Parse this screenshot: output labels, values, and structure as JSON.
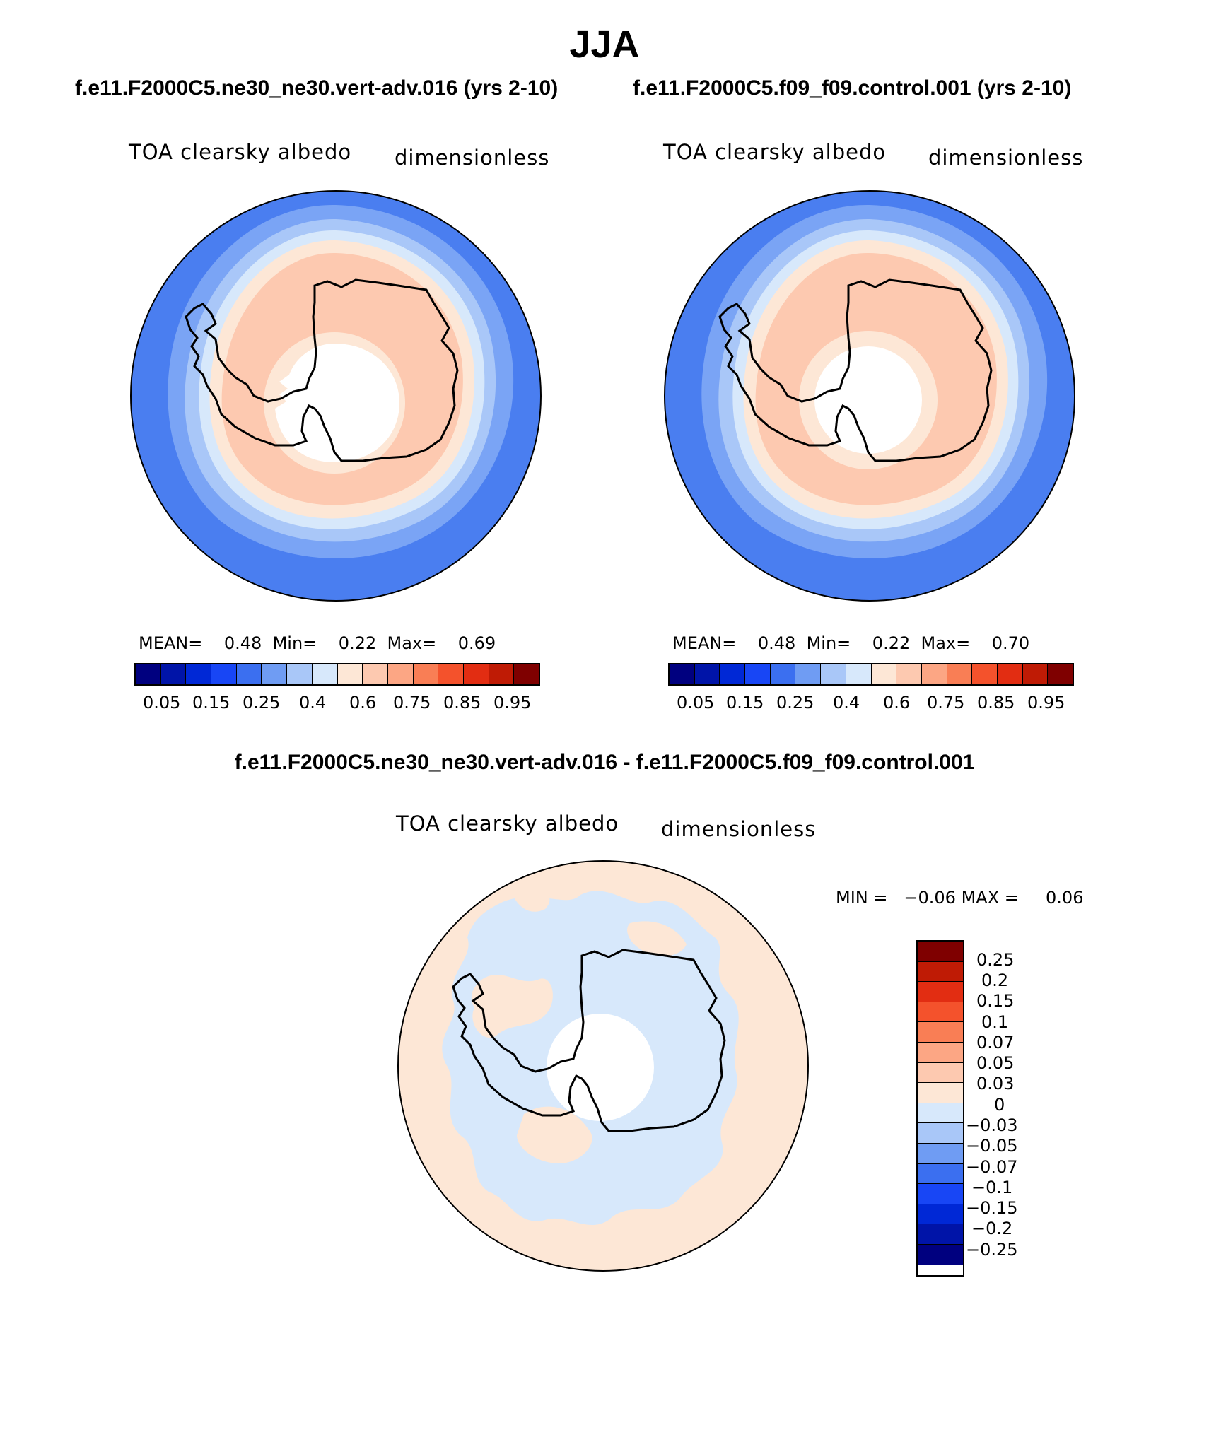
{
  "page": {
    "title": "JJA"
  },
  "panels": [
    {
      "case": "f.e11.F2000C5.ne30_ne30.vert-adv.016 (yrs 2-10)",
      "variable": "TOA clearsky albedo",
      "units": "dimensionless",
      "stats": {
        "mean_label": "MEAN=",
        "mean": "0.48",
        "min_label": "Min=",
        "min": "0.22",
        "max_label": "Max=",
        "max": "0.69"
      }
    },
    {
      "case": "f.e11.F2000C5.f09_f09.control.001 (yrs 2-10)",
      "variable": "TOA clearsky albedo",
      "units": "dimensionless",
      "stats": {
        "mean_label": "MEAN=",
        "mean": "0.48",
        "min_label": "Min=",
        "min": "0.22",
        "max_label": "Max=",
        "max": "0.70"
      }
    }
  ],
  "abs_colorbar": {
    "colors": [
      "#00007f",
      "#0014a8",
      "#0028d6",
      "#1846f5",
      "#3b6ff0",
      "#6f9cf3",
      "#a9c7f8",
      "#d7e8fb",
      "#fde7d6",
      "#fdc9b0",
      "#fca684",
      "#f97e55",
      "#f4522c",
      "#e22d12",
      "#bf1b05",
      "#7f0000"
    ],
    "tick_labels": [
      "0.05",
      "0.15",
      "0.25",
      "0.4",
      "0.6",
      "0.75",
      "0.85",
      "0.95"
    ]
  },
  "diff_panel": {
    "title": "f.e11.F2000C5.ne30_ne30.vert-adv.016 - f.e11.F2000C5.f09_f09.control.001",
    "variable": "TOA clearsky albedo",
    "units": "dimensionless",
    "stats": {
      "min_label": "MIN =",
      "min": "−0.06",
      "max_label": "MAX =",
      "max": "0.06"
    }
  },
  "diff_colorbar": {
    "colors": [
      "#7f0000",
      "#bf1b05",
      "#e22d12",
      "#f4522c",
      "#f97e55",
      "#fca684",
      "#fdc9b0",
      "#fde7d6",
      "#d7e8fb",
      "#a9c7f8",
      "#6f9cf3",
      "#3b6ff0",
      "#1846f5",
      "#0028d6",
      "#0014a8",
      "#00007f"
    ],
    "tick_labels": [
      "0.25",
      "0.2",
      "0.15",
      "0.1",
      "0.07",
      "0.05",
      "0.03",
      "0",
      "−0.03",
      "−0.05",
      "−0.07",
      "−0.1",
      "−0.15",
      "−0.2",
      "−0.25"
    ]
  },
  "map_colors": {
    "ocean_far": "#4a7ef0",
    "ring1": "#7aa4f5",
    "ring2": "#a9c7f8",
    "ring3": "#d7e8fb",
    "ring4": "#fde7d6",
    "ice": "#fdc9b0",
    "interior": "#fde7d6",
    "diff_pos": "#fde7d6",
    "diff_neg": "#d7e8fb"
  }
}
